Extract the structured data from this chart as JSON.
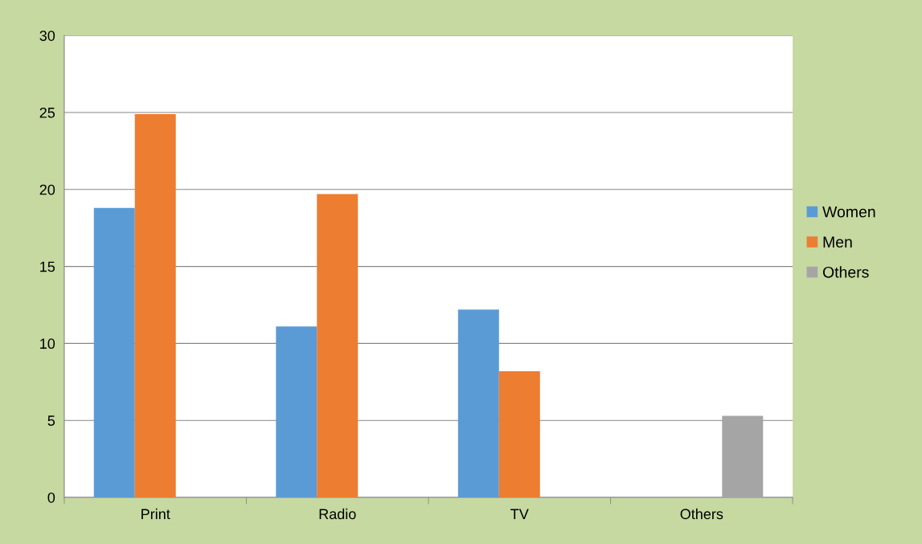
{
  "chart_data": {
    "type": "bar",
    "categories": [
      "Print",
      "Radio",
      "TV",
      "Others"
    ],
    "series": [
      {
        "name": "Women",
        "color": "#5b9bd5",
        "values": [
          18.8,
          11.1,
          12.2,
          null
        ]
      },
      {
        "name": "Men",
        "color": "#ed7d31",
        "values": [
          24.9,
          19.7,
          8.2,
          null
        ]
      },
      {
        "name": "Others",
        "color": "#a5a5a5",
        "values": [
          null,
          null,
          null,
          5.3
        ]
      }
    ],
    "ylim": [
      0,
      30
    ],
    "yticks": [
      0,
      5,
      10,
      15,
      20,
      25,
      30
    ],
    "grid": "y",
    "legend": "right"
  }
}
